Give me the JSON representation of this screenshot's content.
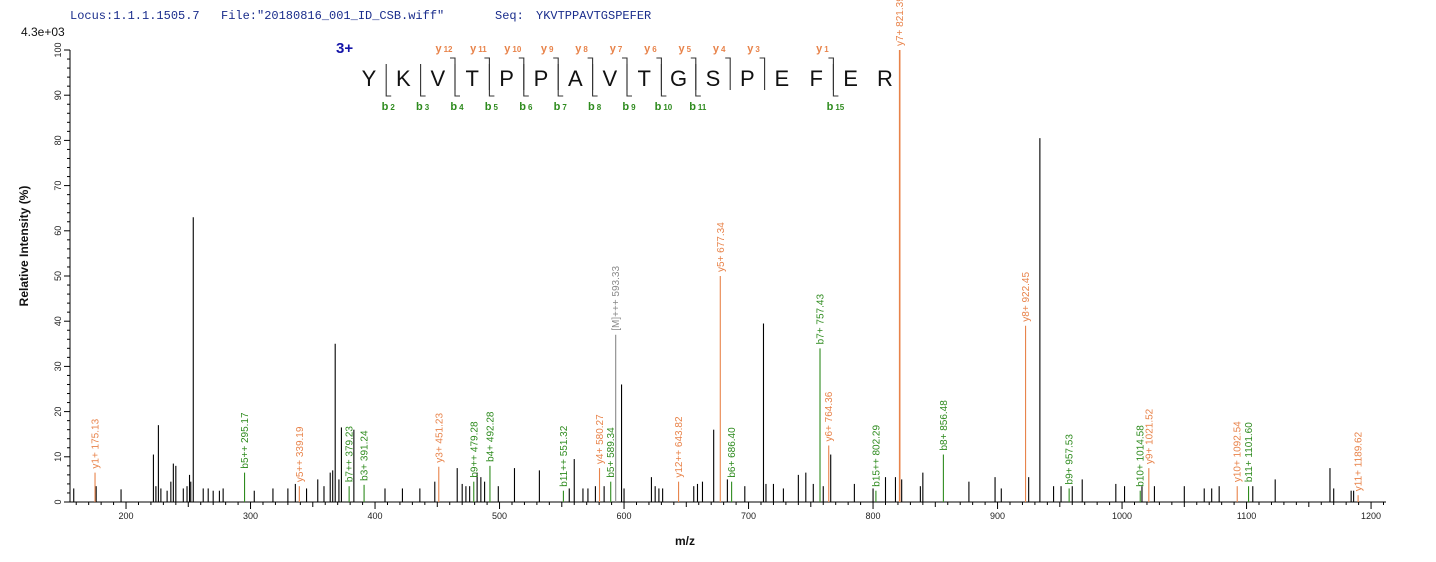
{
  "header": {
    "locus_label": "Locus:1.1.1.1505.7",
    "file_label": "File:\"20180816_001_ID_CSB.wiff\"",
    "seq_label": "Seq:",
    "seq_value": "YKVTPPAVTGSPEFER",
    "intensity_max": "4.3e+03"
  },
  "colors": {
    "b_ion": "#2e8b1e",
    "y_ion": "#e8834a",
    "precursor": "#888888",
    "unassigned": "#000000"
  },
  "annotation": {
    "charge": "3+",
    "sequence": [
      "Y",
      "K",
      "V",
      "T",
      "P",
      "P",
      "A",
      "V",
      "T",
      "G",
      "S",
      "P",
      "E",
      "F",
      "E",
      "R"
    ],
    "y_ions": [
      {
        "n": "12",
        "after": 3
      },
      {
        "n": "11",
        "after": 4
      },
      {
        "n": "10",
        "after": 5
      },
      {
        "n": "9",
        "after": 6
      },
      {
        "n": "8",
        "after": 7
      },
      {
        "n": "7",
        "after": 8
      },
      {
        "n": "6",
        "after": 9
      },
      {
        "n": "5",
        "after": 10
      },
      {
        "n": "4",
        "after": 11
      },
      {
        "n": "3",
        "after": 12
      },
      {
        "n": "1",
        "after": 14
      }
    ],
    "b_ions": [
      {
        "n": "2",
        "after": 1
      },
      {
        "n": "3",
        "after": 2
      },
      {
        "n": "4",
        "after": 3
      },
      {
        "n": "5",
        "after": 4
      },
      {
        "n": "6",
        "after": 5
      },
      {
        "n": "7",
        "after": 6
      },
      {
        "n": "8",
        "after": 7
      },
      {
        "n": "9",
        "after": 8
      },
      {
        "n": "10",
        "after": 9
      },
      {
        "n": "11",
        "after": 10
      },
      {
        "n": "15",
        "after": 14
      }
    ]
  },
  "chart_data": {
    "type": "bar",
    "xlabel": "m/z",
    "ylabel": "Relative Intensity (%)",
    "xlim": [
      155,
      1212
    ],
    "ylim": [
      0,
      100
    ],
    "x_ticks": [
      200,
      300,
      400,
      500,
      600,
      700,
      800,
      900,
      1000,
      1100,
      1200
    ],
    "y_ticks": [
      0,
      10,
      20,
      30,
      40,
      50,
      60,
      70,
      80,
      90,
      100
    ],
    "annotated_peaks": [
      {
        "mz": 175.1,
        "intensity": 6.5,
        "label": "y1+ 175.13",
        "ion": "y"
      },
      {
        "mz": 295.2,
        "intensity": 6.5,
        "label": "b5++ 295.17",
        "ion": "b"
      },
      {
        "mz": 339.2,
        "intensity": 3.5,
        "label": "y5++ 339.19",
        "ion": "y"
      },
      {
        "mz": 379.2,
        "intensity": 3.5,
        "label": "b7++ 379.23",
        "ion": "b"
      },
      {
        "mz": 391.2,
        "intensity": 3.8,
        "label": "b3+ 391.24",
        "ion": "b"
      },
      {
        "mz": 451.2,
        "intensity": 7.8,
        "label": "y3+ 451.23",
        "ion": "y"
      },
      {
        "mz": 479.3,
        "intensity": 4.5,
        "label": "b9++ 479.28",
        "ion": "b"
      },
      {
        "mz": 492.3,
        "intensity": 8.0,
        "label": "b4+ 492.28",
        "ion": "b"
      },
      {
        "mz": 551.3,
        "intensity": 2.5,
        "label": "b11++ 551.32",
        "ion": "b"
      },
      {
        "mz": 580.3,
        "intensity": 7.5,
        "label": "y4+ 580.27",
        "ion": "y"
      },
      {
        "mz": 589.3,
        "intensity": 4.5,
        "label": "b5+ 589.34",
        "ion": "b"
      },
      {
        "mz": 593.3,
        "intensity": 37.0,
        "label": "[M]+++ 593.33",
        "ion": "precursor"
      },
      {
        "mz": 643.8,
        "intensity": 4.5,
        "label": "y12++ 643.82",
        "ion": "y"
      },
      {
        "mz": 677.3,
        "intensity": 50.0,
        "label": "y5+ 677.34",
        "ion": "y"
      },
      {
        "mz": 686.4,
        "intensity": 4.5,
        "label": "b6+ 686.40",
        "ion": "b"
      },
      {
        "mz": 757.4,
        "intensity": 34.0,
        "label": "b7+ 757.43",
        "ion": "b"
      },
      {
        "mz": 764.4,
        "intensity": 12.5,
        "label": "y6+ 764.36",
        "ion": "y"
      },
      {
        "mz": 802.3,
        "intensity": 2.5,
        "label": "b15++ 802.29",
        "ion": "b"
      },
      {
        "mz": 821.4,
        "intensity": 100.0,
        "label": "y7+ 821.39",
        "ion": "y"
      },
      {
        "mz": 856.5,
        "intensity": 10.5,
        "label": "b8+ 856.48",
        "ion": "b"
      },
      {
        "mz": 922.5,
        "intensity": 39.0,
        "label": "y8+ 922.45",
        "ion": "y"
      },
      {
        "mz": 957.5,
        "intensity": 3.0,
        "label": "b9+ 957.53",
        "ion": "b"
      },
      {
        "mz": 1014.6,
        "intensity": 2.5,
        "label": "b10+ 1014.58",
        "ion": "b"
      },
      {
        "mz": 1021.5,
        "intensity": 7.5,
        "label": "y9+ 1021.52",
        "ion": "y"
      },
      {
        "mz": 1092.5,
        "intensity": 3.5,
        "label": "y10+ 1092.54",
        "ion": "y"
      },
      {
        "mz": 1101.6,
        "intensity": 3.5,
        "label": "b11+ 1101.60",
        "ion": "b"
      },
      {
        "mz": 1189.6,
        "intensity": 1.5,
        "label": "y11+ 1189.62",
        "ion": "y"
      }
    ],
    "unassigned_peaks": [
      {
        "mz": 158,
        "intensity": 3.0
      },
      {
        "mz": 176,
        "intensity": 3.5
      },
      {
        "mz": 196,
        "intensity": 2.8
      },
      {
        "mz": 222,
        "intensity": 10.5
      },
      {
        "mz": 224,
        "intensity": 3.5
      },
      {
        "mz": 226,
        "intensity": 17.0
      },
      {
        "mz": 228,
        "intensity": 3.0
      },
      {
        "mz": 233,
        "intensity": 2.5
      },
      {
        "mz": 236,
        "intensity": 4.5
      },
      {
        "mz": 238,
        "intensity": 8.5
      },
      {
        "mz": 240,
        "intensity": 8.0
      },
      {
        "mz": 246,
        "intensity": 3.0
      },
      {
        "mz": 249,
        "intensity": 3.5
      },
      {
        "mz": 251,
        "intensity": 6.0
      },
      {
        "mz": 252,
        "intensity": 4.5
      },
      {
        "mz": 254,
        "intensity": 63.0
      },
      {
        "mz": 262,
        "intensity": 3.0
      },
      {
        "mz": 266,
        "intensity": 3.0
      },
      {
        "mz": 270,
        "intensity": 2.5
      },
      {
        "mz": 275,
        "intensity": 2.5
      },
      {
        "mz": 278,
        "intensity": 3.0
      },
      {
        "mz": 303,
        "intensity": 2.5
      },
      {
        "mz": 318,
        "intensity": 3.0
      },
      {
        "mz": 330,
        "intensity": 3.0
      },
      {
        "mz": 336,
        "intensity": 4.0
      },
      {
        "mz": 345,
        "intensity": 3.0
      },
      {
        "mz": 354,
        "intensity": 5.0
      },
      {
        "mz": 359,
        "intensity": 3.5
      },
      {
        "mz": 364,
        "intensity": 6.5
      },
      {
        "mz": 366,
        "intensity": 7.0
      },
      {
        "mz": 368,
        "intensity": 35.0
      },
      {
        "mz": 371,
        "intensity": 5.0
      },
      {
        "mz": 373,
        "intensity": 16.5
      },
      {
        "mz": 383,
        "intensity": 16.0
      },
      {
        "mz": 408,
        "intensity": 3.0
      },
      {
        "mz": 422,
        "intensity": 3.0
      },
      {
        "mz": 436,
        "intensity": 3.0
      },
      {
        "mz": 448,
        "intensity": 4.5
      },
      {
        "mz": 466,
        "intensity": 7.5
      },
      {
        "mz": 470,
        "intensity": 4.0
      },
      {
        "mz": 473,
        "intensity": 3.5
      },
      {
        "mz": 476,
        "intensity": 3.5
      },
      {
        "mz": 482,
        "intensity": 6.5
      },
      {
        "mz": 485,
        "intensity": 5.5
      },
      {
        "mz": 488,
        "intensity": 4.5
      },
      {
        "mz": 499,
        "intensity": 3.5
      },
      {
        "mz": 512,
        "intensity": 7.5
      },
      {
        "mz": 532,
        "intensity": 7.0
      },
      {
        "mz": 556,
        "intensity": 3.0
      },
      {
        "mz": 560,
        "intensity": 9.5
      },
      {
        "mz": 567,
        "intensity": 3.0
      },
      {
        "mz": 571,
        "intensity": 3.0
      },
      {
        "mz": 577,
        "intensity": 3.5
      },
      {
        "mz": 584,
        "intensity": 3.5
      },
      {
        "mz": 598,
        "intensity": 26.0
      },
      {
        "mz": 600,
        "intensity": 3.0
      },
      {
        "mz": 622,
        "intensity": 5.5
      },
      {
        "mz": 625,
        "intensity": 3.5
      },
      {
        "mz": 628,
        "intensity": 3.0
      },
      {
        "mz": 631,
        "intensity": 3.0
      },
      {
        "mz": 656,
        "intensity": 3.5
      },
      {
        "mz": 659,
        "intensity": 4.0
      },
      {
        "mz": 663,
        "intensity": 4.5
      },
      {
        "mz": 672,
        "intensity": 16.0
      },
      {
        "mz": 683,
        "intensity": 5.0
      },
      {
        "mz": 697,
        "intensity": 3.5
      },
      {
        "mz": 712,
        "intensity": 39.5
      },
      {
        "mz": 714,
        "intensity": 4.0
      },
      {
        "mz": 720,
        "intensity": 4.0
      },
      {
        "mz": 728,
        "intensity": 3.0
      },
      {
        "mz": 740,
        "intensity": 6.0
      },
      {
        "mz": 746,
        "intensity": 6.5
      },
      {
        "mz": 752,
        "intensity": 4.0
      },
      {
        "mz": 760,
        "intensity": 3.5
      },
      {
        "mz": 766,
        "intensity": 10.5
      },
      {
        "mz": 785,
        "intensity": 4.0
      },
      {
        "mz": 800,
        "intensity": 3.0
      },
      {
        "mz": 810,
        "intensity": 5.5
      },
      {
        "mz": 818,
        "intensity": 5.5
      },
      {
        "mz": 823,
        "intensity": 5.0
      },
      {
        "mz": 838,
        "intensity": 3.5
      },
      {
        "mz": 840,
        "intensity": 6.5
      },
      {
        "mz": 877,
        "intensity": 4.5
      },
      {
        "mz": 898,
        "intensity": 5.5
      },
      {
        "mz": 903,
        "intensity": 3.0
      },
      {
        "mz": 925,
        "intensity": 5.5
      },
      {
        "mz": 934,
        "intensity": 80.5
      },
      {
        "mz": 945,
        "intensity": 3.5
      },
      {
        "mz": 951,
        "intensity": 3.5
      },
      {
        "mz": 960,
        "intensity": 3.5
      },
      {
        "mz": 968,
        "intensity": 5.0
      },
      {
        "mz": 995,
        "intensity": 4.0
      },
      {
        "mz": 1002,
        "intensity": 3.5
      },
      {
        "mz": 1016,
        "intensity": 3.5
      },
      {
        "mz": 1026,
        "intensity": 3.5
      },
      {
        "mz": 1050,
        "intensity": 3.5
      },
      {
        "mz": 1066,
        "intensity": 3.0
      },
      {
        "mz": 1072,
        "intensity": 3.0
      },
      {
        "mz": 1078,
        "intensity": 3.5
      },
      {
        "mz": 1105,
        "intensity": 3.5
      },
      {
        "mz": 1123,
        "intensity": 5.0
      },
      {
        "mz": 1167,
        "intensity": 7.5
      },
      {
        "mz": 1170,
        "intensity": 3.0
      },
      {
        "mz": 1184,
        "intensity": 2.5
      },
      {
        "mz": 1186,
        "intensity": 2.5
      }
    ]
  }
}
